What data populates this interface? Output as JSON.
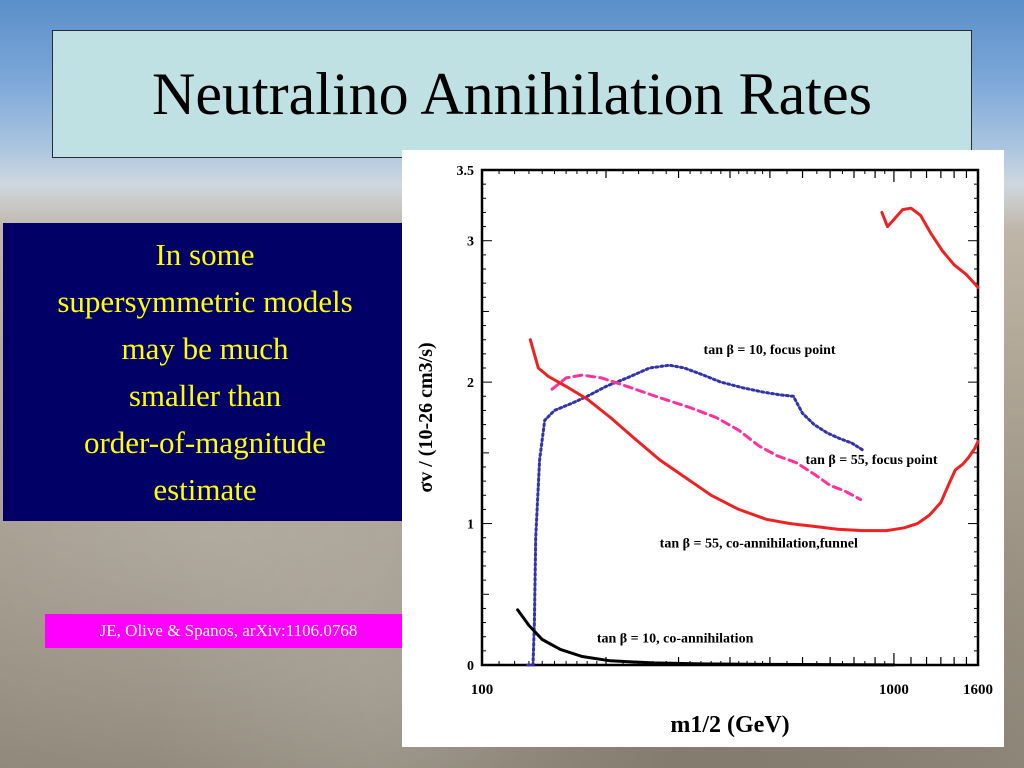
{
  "slide": {
    "title": "Neutralino Annihilation Rates",
    "note_lines": [
      "In some",
      "supersymmetric models",
      "may be much",
      "smaller than",
      "order-of-magnitude",
      "estimate"
    ],
    "reference": "JE, Olive & Spanos, arXiv:1106.0768"
  },
  "chart_data": {
    "type": "line",
    "xlabel": "m1/2 (GeV)",
    "ylabel": "σv / (10-26 cm3/s)",
    "xlim": [
      100,
      1600
    ],
    "ylim": [
      0,
      3.5
    ],
    "x_scale": "log",
    "x_tick_labels": [
      "100",
      "1000",
      "1600"
    ],
    "y_tick_labels": [
      "0",
      "1",
      "2",
      "3",
      "3.5"
    ],
    "series": [
      {
        "name": "tan β = 10, focus point",
        "style": "dotted",
        "color": "#3333aa",
        "points": [
          [
            129,
            0
          ],
          [
            133,
            0
          ],
          [
            134,
            0.3
          ],
          [
            135,
            0.9
          ],
          [
            138,
            1.45
          ],
          [
            142,
            1.73
          ],
          [
            150,
            1.8
          ],
          [
            165,
            1.85
          ],
          [
            180,
            1.9
          ],
          [
            200,
            1.97
          ],
          [
            225,
            2.03
          ],
          [
            255,
            2.1
          ],
          [
            285,
            2.12
          ],
          [
            310,
            2.1
          ],
          [
            345,
            2.05
          ],
          [
            380,
            2.0
          ],
          [
            430,
            1.96
          ],
          [
            480,
            1.93
          ],
          [
            530,
            1.91
          ],
          [
            570,
            1.9
          ],
          [
            600,
            1.78
          ],
          [
            640,
            1.7
          ],
          [
            690,
            1.64
          ],
          [
            740,
            1.6
          ],
          [
            790,
            1.57
          ],
          [
            840,
            1.52
          ]
        ]
      },
      {
        "name": "tan β = 55, focus point",
        "style": "dashed",
        "color": "#ff3399",
        "points": [
          [
            148,
            1.95
          ],
          [
            160,
            2.03
          ],
          [
            175,
            2.05
          ],
          [
            195,
            2.03
          ],
          [
            225,
            1.97
          ],
          [
            270,
            1.89
          ],
          [
            320,
            1.82
          ],
          [
            370,
            1.75
          ],
          [
            420,
            1.66
          ],
          [
            470,
            1.55
          ],
          [
            520,
            1.48
          ],
          [
            580,
            1.43
          ],
          [
            640,
            1.35
          ],
          [
            700,
            1.27
          ],
          [
            760,
            1.23
          ],
          [
            830,
            1.17
          ]
        ]
      },
      {
        "name": "tan β = 55, co-annihilation,funnel",
        "style": "solid",
        "color": "#ee2222",
        "points": [
          [
            131,
            2.3
          ],
          [
            137,
            2.1
          ],
          [
            145,
            2.04
          ],
          [
            160,
            1.97
          ],
          [
            180,
            1.88
          ],
          [
            205,
            1.75
          ],
          [
            235,
            1.6
          ],
          [
            270,
            1.45
          ],
          [
            310,
            1.33
          ],
          [
            360,
            1.2
          ],
          [
            420,
            1.1
          ],
          [
            490,
            1.03
          ],
          [
            560,
            1.0
          ],
          [
            640,
            0.98
          ],
          [
            730,
            0.96
          ],
          [
            840,
            0.95
          ],
          [
            960,
            0.95
          ],
          [
            1060,
            0.97
          ],
          [
            1140,
            1.0
          ],
          [
            1220,
            1.06
          ],
          [
            1300,
            1.15
          ],
          [
            1360,
            1.28
          ],
          [
            1410,
            1.38
          ],
          [
            1470,
            1.42
          ],
          [
            1520,
            1.47
          ],
          [
            1570,
            1.53
          ],
          [
            1600,
            1.58
          ]
        ]
      },
      {
        "name": "tan β = 55, co-annihilation,funnel (upper branch)",
        "style": "solid",
        "color": "#ee2222",
        "points": [
          [
            935,
            3.2
          ],
          [
            965,
            3.1
          ],
          [
            1000,
            3.15
          ],
          [
            1050,
            3.22
          ],
          [
            1100,
            3.23
          ],
          [
            1160,
            3.18
          ],
          [
            1230,
            3.05
          ],
          [
            1310,
            2.93
          ],
          [
            1400,
            2.83
          ],
          [
            1500,
            2.76
          ],
          [
            1600,
            2.67
          ]
        ]
      },
      {
        "name": "tan β = 10, co-annihilation",
        "style": "solid",
        "color": "#000000",
        "points": [
          [
            122,
            0.39
          ],
          [
            130,
            0.28
          ],
          [
            140,
            0.18
          ],
          [
            155,
            0.11
          ],
          [
            175,
            0.06
          ],
          [
            205,
            0.03
          ],
          [
            260,
            0.015
          ],
          [
            340,
            0.008
          ],
          [
            500,
            0.004
          ],
          [
            1000,
            0.001
          ]
        ]
      }
    ],
    "annotations": [
      "tan β = 10, focus point",
      "tan β = 55, focus point",
      "tan β = 55, co-annihilation,funnel",
      "tan β = 10, co-annihilation"
    ]
  }
}
